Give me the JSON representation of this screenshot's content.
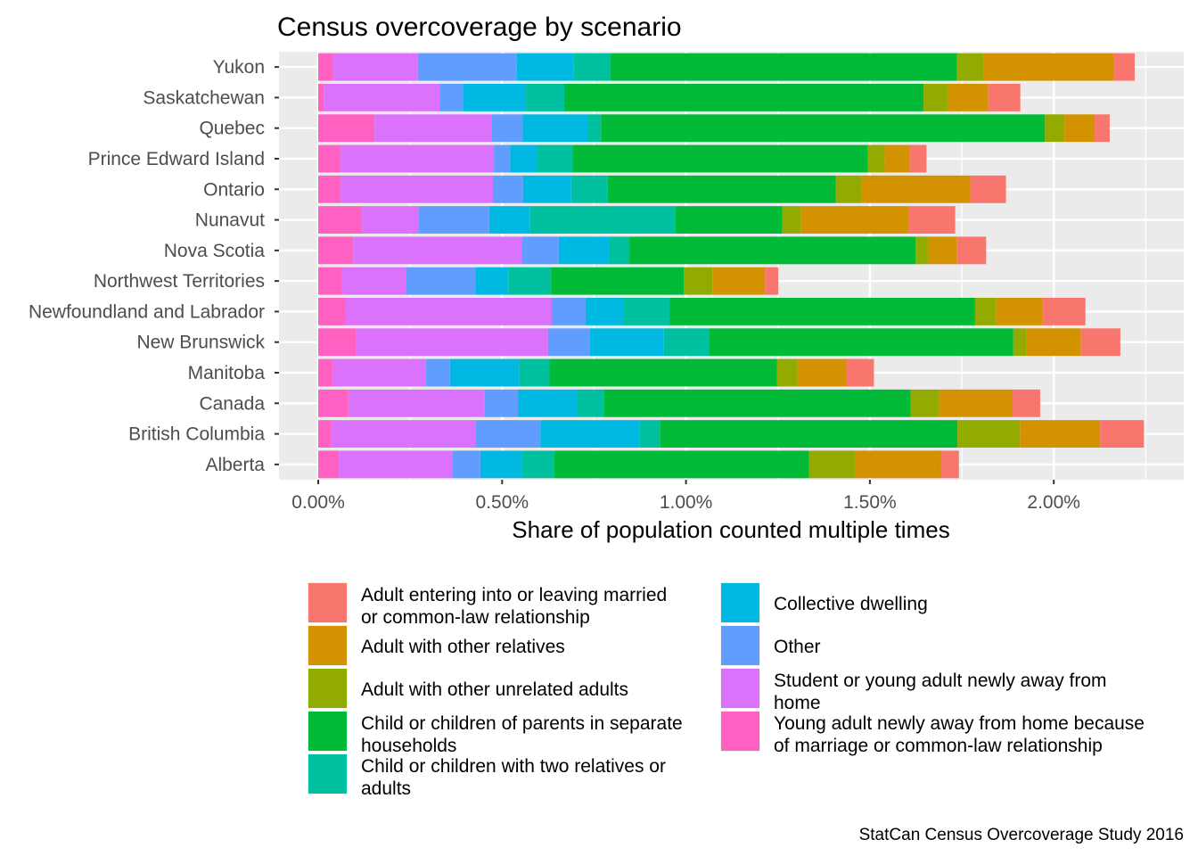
{
  "chart_data": {
    "type": "bar",
    "orientation": "horizontal",
    "stacked": true,
    "title": "Census overcoverage by scenario",
    "xlabel": "Share of population counted multiple times",
    "ylabel": "",
    "caption": "StatCan Census Overcoverage Study 2016",
    "xlim": [
      -0.11,
      2.35
    ],
    "x_ticks": [
      0,
      0.5,
      1.0,
      1.5,
      2.0
    ],
    "x_tick_labels": [
      "0.00%",
      "0.50%",
      "1.00%",
      "1.50%",
      "2.00%"
    ],
    "grid": true,
    "legend_position": "bottom",
    "legend_columns": 2,
    "categories": [
      "Yukon",
      "Saskatchewan",
      "Quebec",
      "Prince Edward Island",
      "Ontario",
      "Nunavut",
      "Nova Scotia",
      "Northwest Territories",
      "Newfoundland and Labrador",
      "New Brunswick",
      "Manitoba",
      "Canada",
      "British Columbia",
      "Alberta"
    ],
    "series": [
      {
        "name": "Young adult newly away from home because of marriage or common-law relationship",
        "color": "#FF61C3",
        "values": [
          0.041,
          0.015,
          0.153,
          0.061,
          0.061,
          0.119,
          0.095,
          0.063,
          0.075,
          0.102,
          0.039,
          0.082,
          0.034,
          0.056
        ]
      },
      {
        "name": "Student or young adult newly away from home",
        "color": "#DB72FB",
        "values": [
          0.23,
          0.315,
          0.318,
          0.417,
          0.414,
          0.155,
          0.46,
          0.177,
          0.56,
          0.523,
          0.254,
          0.371,
          0.393,
          0.31
        ]
      },
      {
        "name": "Other",
        "color": "#619CFF",
        "values": [
          0.269,
          0.063,
          0.085,
          0.044,
          0.082,
          0.191,
          0.099,
          0.187,
          0.092,
          0.114,
          0.065,
          0.09,
          0.177,
          0.075
        ]
      },
      {
        "name": "Collective dwelling",
        "color": "#00B9E3",
        "values": [
          0.155,
          0.172,
          0.177,
          0.073,
          0.131,
          0.111,
          0.136,
          0.09,
          0.102,
          0.201,
          0.189,
          0.16,
          0.269,
          0.114
        ]
      },
      {
        "name": "Child or children with two relatives or adults",
        "color": "#00C19F",
        "values": [
          0.099,
          0.104,
          0.036,
          0.097,
          0.099,
          0.395,
          0.056,
          0.116,
          0.126,
          0.124,
          0.082,
          0.075,
          0.056,
          0.087
        ]
      },
      {
        "name": "Child or children of parents in separate households",
        "color": "#00BA38",
        "values": [
          0.943,
          0.977,
          1.207,
          0.802,
          0.62,
          0.291,
          0.778,
          0.361,
          0.831,
          0.826,
          0.618,
          0.833,
          0.809,
          0.693
        ]
      },
      {
        "name": "Adult with other unrelated adults",
        "color": "#93AA00",
        "values": [
          0.073,
          0.065,
          0.053,
          0.046,
          0.07,
          0.051,
          0.034,
          0.078,
          0.058,
          0.036,
          0.056,
          0.078,
          0.17,
          0.124
        ]
      },
      {
        "name": "Adult with other relatives",
        "color": "#D39200",
        "values": [
          0.354,
          0.111,
          0.082,
          0.068,
          0.296,
          0.293,
          0.078,
          0.143,
          0.126,
          0.148,
          0.133,
          0.199,
          0.218,
          0.235
        ]
      },
      {
        "name": "Adult entering into or leaving married or common-law relationship",
        "color": "#F8766D",
        "values": [
          0.056,
          0.087,
          0.041,
          0.046,
          0.097,
          0.126,
          0.08,
          0.036,
          0.116,
          0.107,
          0.075,
          0.075,
          0.119,
          0.048
        ]
      }
    ],
    "legend_order": [
      "Adult entering into or leaving married or common-law relationship",
      "Adult with other relatives",
      "Adult with other unrelated adults",
      "Child or children of parents in separate households",
      "Child or children with two relatives or adults",
      "Collective dwelling",
      "Other",
      "Student or young adult newly away from home",
      "Young adult newly away from home because of marriage or common-law relationship"
    ],
    "legend_labels_wrapped": [
      [
        "Adult entering into or leaving married",
        "or common-law relationship"
      ],
      [
        "Adult with other relatives"
      ],
      [
        "Adult with other unrelated adults"
      ],
      [
        "Child or children of parents in separate",
        "households"
      ],
      [
        "Child or children with two relatives or",
        "adults"
      ],
      [
        "Collective dwelling"
      ],
      [
        "Other"
      ],
      [
        "Student or young adult newly away from",
        "home"
      ],
      [
        "Young adult newly away from home because",
        "of marriage or common-law relationship"
      ]
    ]
  }
}
